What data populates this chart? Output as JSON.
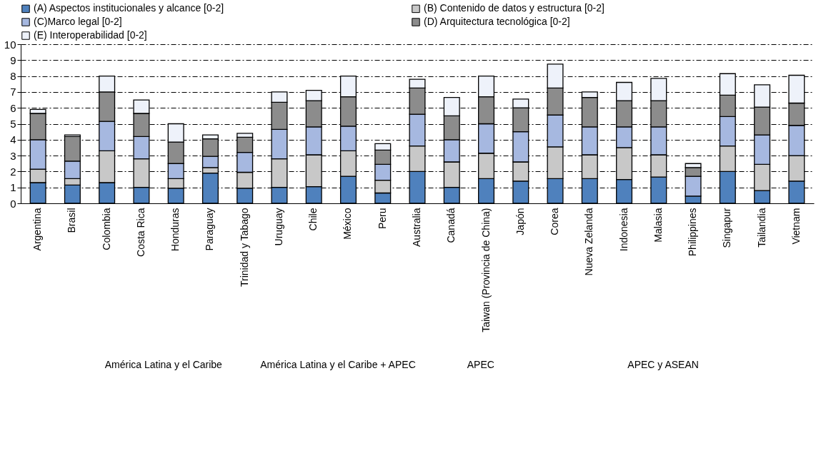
{
  "chart_data": {
    "type": "bar",
    "stacked": true,
    "categories": [
      "Argentina",
      "Brasil",
      "Colombia",
      "Costa Rica",
      "Honduras",
      "Paraguay",
      "Trinidad y Tabago",
      "Uruguay",
      "Chile",
      "México",
      "Peru",
      "Australia",
      "Canadá",
      "Taiwan (Provincia de China)",
      "Japón",
      "Corea",
      "Nueva Zelanda",
      "Indonesia",
      "Malasia",
      "Philippines",
      "Singapur",
      "Tailandia",
      "Vietnam"
    ],
    "series": [
      {
        "name": "(A) Aspectos institucionales y alcance [0-2]",
        "color": "#4f81bd",
        "values": [
          1.3,
          1.15,
          1.3,
          1.0,
          0.95,
          1.9,
          0.95,
          1.0,
          1.05,
          1.7,
          0.65,
          2.0,
          1.0,
          1.55,
          1.4,
          1.55,
          1.55,
          1.5,
          1.65,
          0.45,
          2.0,
          0.8,
          1.4
        ]
      },
      {
        "name": "(B) Contenido de datos y estructura [0-2]",
        "color": "#c8c8c8",
        "values": [
          0.85,
          0.4,
          2.0,
          1.8,
          0.6,
          0.35,
          1.0,
          1.8,
          2.0,
          1.6,
          0.8,
          1.6,
          1.6,
          1.6,
          1.2,
          2.0,
          1.5,
          2.0,
          1.4,
          null,
          1.6,
          1.65,
          1.6
        ]
      },
      {
        "name": "(C)Marco legal [0-2]",
        "color": "#a6b8e0",
        "values": [
          1.85,
          1.1,
          1.85,
          1.4,
          0.95,
          0.7,
          1.25,
          1.85,
          1.75,
          1.55,
          1.0,
          2.0,
          1.4,
          1.85,
          1.9,
          2.0,
          1.75,
          1.3,
          1.75,
          1.25,
          1.85,
          1.85,
          1.9
        ]
      },
      {
        "name": "(D) Arquitectura tecnológica [0-2]",
        "color": "#8c8c8c",
        "values": [
          1.65,
          1.55,
          1.85,
          1.45,
          1.35,
          1.1,
          0.95,
          1.7,
          1.65,
          1.85,
          0.9,
          1.65,
          1.5,
          1.7,
          1.5,
          1.7,
          1.85,
          1.65,
          1.65,
          0.55,
          1.35,
          1.75,
          1.4
        ]
      },
      {
        "name": "(E) Interoperabilidad [0-2]",
        "color": "#eef2fa",
        "values": [
          0.25,
          0.1,
          1.0,
          0.85,
          1.15,
          0.25,
          0.25,
          0.65,
          0.65,
          1.3,
          0.4,
          0.55,
          1.15,
          1.3,
          0.55,
          1.5,
          0.35,
          1.15,
          1.4,
          0.25,
          1.35,
          1.4,
          1.75
        ]
      }
    ],
    "ylim": [
      0,
      10
    ],
    "yticks": [
      0,
      1,
      2,
      3,
      4,
      5,
      6,
      7,
      8,
      9,
      10
    ],
    "grid": "y",
    "legend": "top",
    "annotations": [
      "América Latina y el Caribe",
      "América Latina y el Caribe + APEC",
      "APEC",
      "APEC y ASEAN"
    ]
  }
}
